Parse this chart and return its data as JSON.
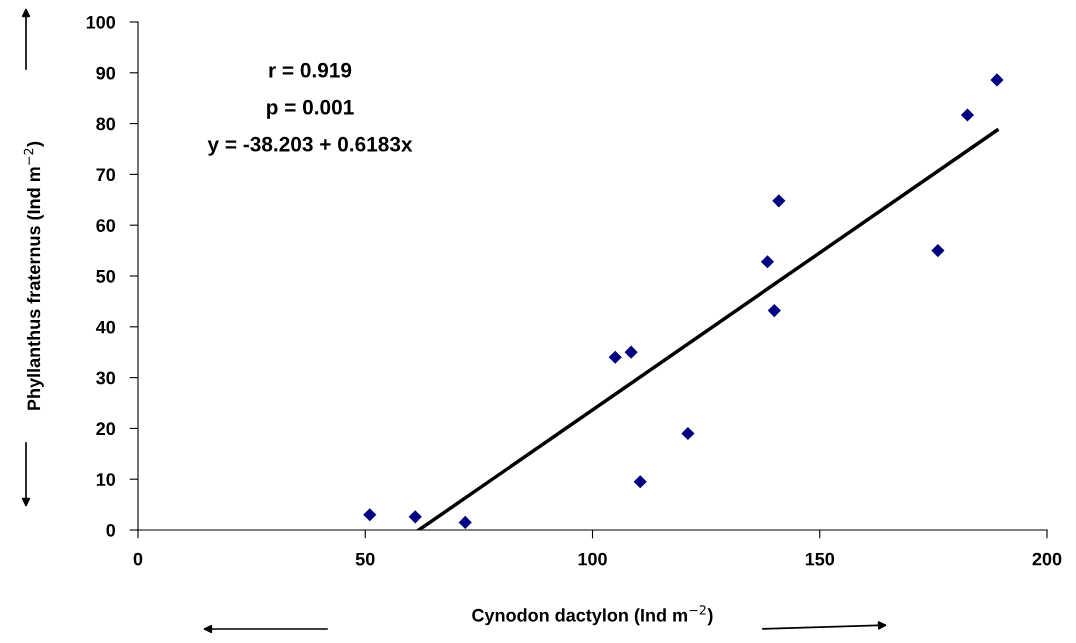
{
  "chart_data": {
    "type": "scatter",
    "xlabel": "Cynodon dactylon (Ind m$^{−2}$)",
    "ylabel": "Phyllanthus fraternus (Ind m$^{−2}$)",
    "annotations": [
      "r = 0.919",
      "p = 0.001",
      "y = -38.203 + 0.6183x"
    ],
    "series": [
      {
        "color": "#000080",
        "marker": "diamond",
        "x": [
          51,
          61,
          72,
          105,
          108.5,
          110.5,
          121,
          138.5,
          140,
          141,
          176,
          182.5,
          189
        ],
        "values": [
          3,
          2.6,
          1.5,
          34,
          35,
          9.5,
          19,
          52.8,
          43.2,
          64.8,
          55,
          81.7,
          88.6
        ]
      },
      {
        "type": "line",
        "color": "#000000",
        "line_style": "solid",
        "x": [
          61.8,
          189
        ],
        "values": [
          0,
          78.7
        ]
      }
    ],
    "xlim": [
      0,
      200
    ],
    "xticks": [
      0,
      50,
      100,
      150,
      200
    ],
    "ylim": [
      0,
      100
    ],
    "yticks": [
      0,
      10,
      20,
      30,
      40,
      50,
      60,
      70,
      80,
      90,
      100
    ],
    "grid": false,
    "legend": false
  }
}
